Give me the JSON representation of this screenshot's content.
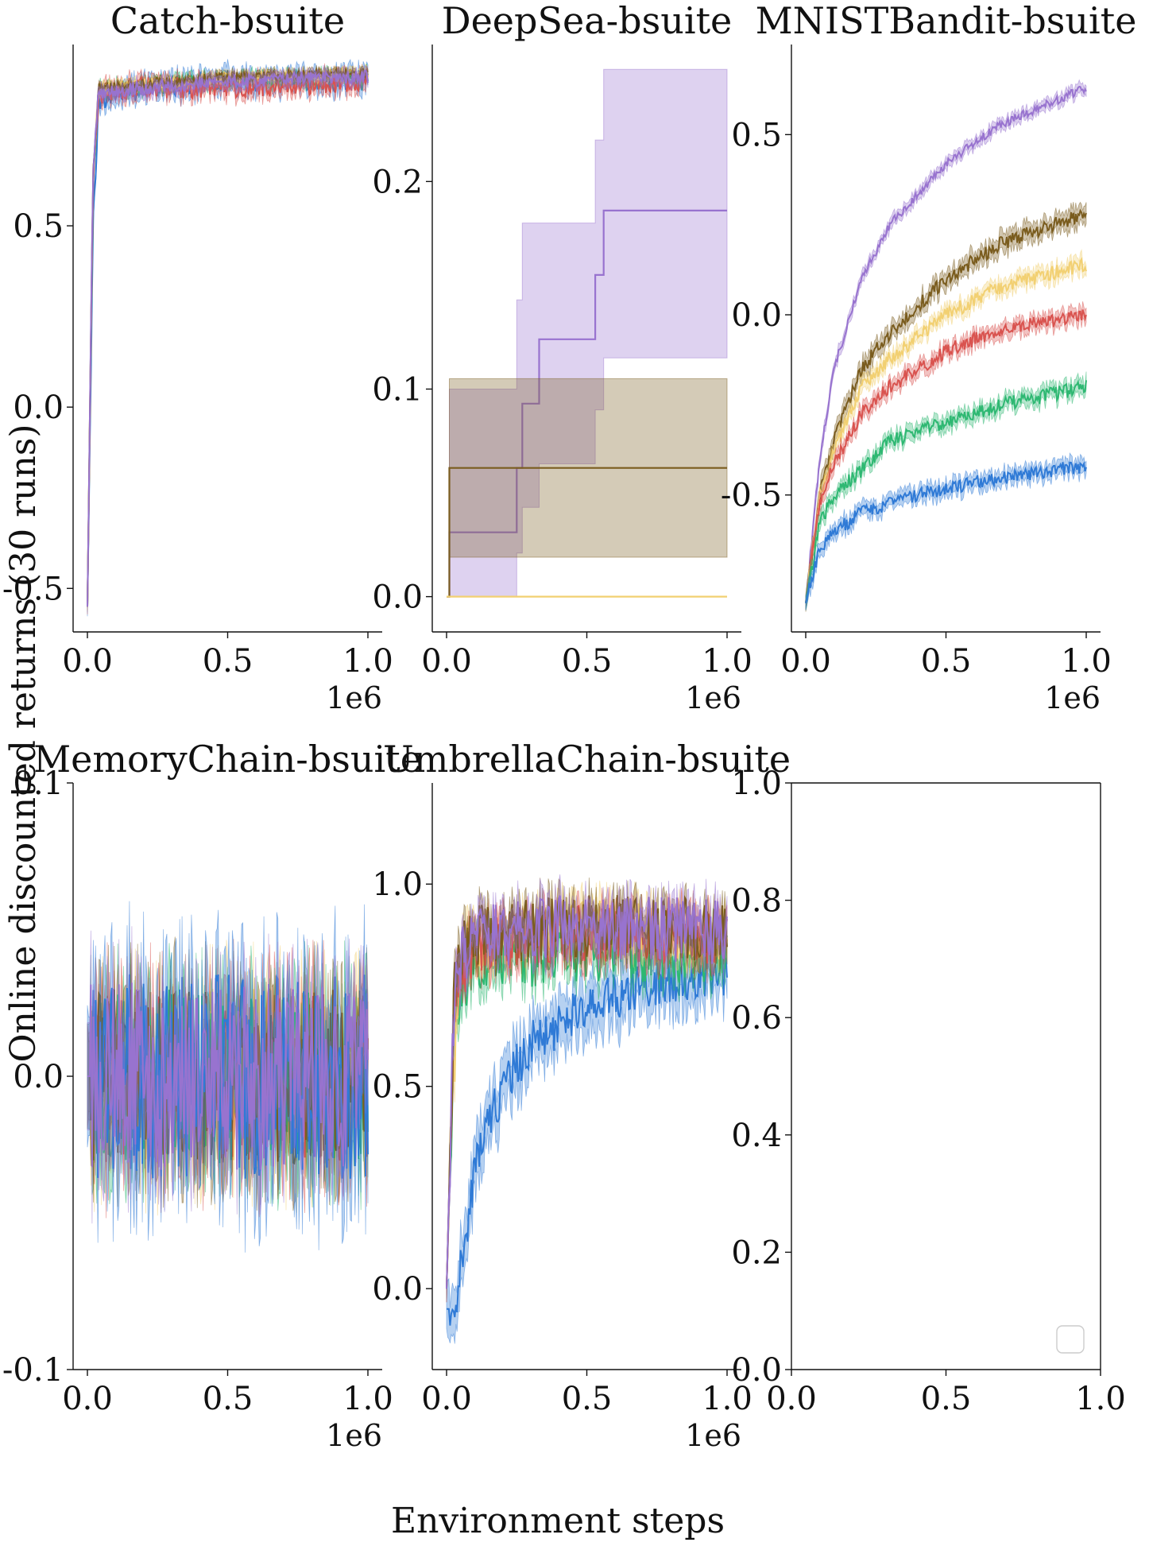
{
  "figure": {
    "xlabel": "Environment steps",
    "ylabel": "Online discounted returns (30 runs)"
  },
  "palette": {
    "blue": "#2f7ad6",
    "green": "#2eb872",
    "red": "#d9534f",
    "yellow": "#f2d072",
    "brown": "#7a5c1e",
    "purple": "#9873cf"
  },
  "chart_data": [
    {
      "type": "line",
      "title": "Catch-bsuite",
      "xlim": [
        0,
        1000000
      ],
      "ylim": [
        -0.62,
        1.0
      ],
      "x_offset_label": "1e6",
      "xticks": [
        {
          "value": 0,
          "label": "0.0"
        },
        {
          "value": 500000,
          "label": "0.5"
        },
        {
          "value": 1000000,
          "label": "1.0"
        }
      ],
      "yticks": [
        {
          "value": -0.5,
          "label": "-0.5"
        },
        {
          "value": 0.0,
          "label": "0.0"
        },
        {
          "value": 0.5,
          "label": "0.5"
        }
      ],
      "series": [
        {
          "color": "blue",
          "points": [
            [
              0,
              -0.55
            ],
            [
              20000,
              0.5
            ],
            [
              40000,
              0.84
            ],
            [
              100000,
              0.86
            ],
            [
              200000,
              0.88
            ],
            [
              500000,
              0.9
            ],
            [
              800000,
              0.9
            ],
            [
              1000000,
              0.9
            ]
          ],
          "noise": 0.03,
          "band": 0.025
        },
        {
          "color": "green",
          "points": [
            [
              0,
              -0.55
            ],
            [
              20000,
              0.6
            ],
            [
              40000,
              0.87
            ],
            [
              100000,
              0.88
            ],
            [
              500000,
              0.9
            ],
            [
              1000000,
              0.91
            ]
          ],
          "noise": 0.02,
          "band": 0.015
        },
        {
          "color": "red",
          "points": [
            [
              0,
              -0.55
            ],
            [
              20000,
              0.6
            ],
            [
              40000,
              0.86
            ],
            [
              100000,
              0.88
            ],
            [
              500000,
              0.88
            ],
            [
              1000000,
              0.9
            ]
          ],
          "noise": 0.03,
          "band": 0.02
        },
        {
          "color": "yellow",
          "points": [
            [
              0,
              -0.55
            ],
            [
              20000,
              0.65
            ],
            [
              40000,
              0.88
            ],
            [
              500000,
              0.91
            ],
            [
              1000000,
              0.92
            ]
          ],
          "noise": 0.015,
          "band": 0.01
        },
        {
          "color": "brown",
          "points": [
            [
              0,
              -0.55
            ],
            [
              20000,
              0.65
            ],
            [
              40000,
              0.88
            ],
            [
              500000,
              0.91
            ],
            [
              1000000,
              0.92
            ]
          ],
          "noise": 0.015,
          "band": 0.01
        },
        {
          "color": "purple",
          "points": [
            [
              0,
              -0.55
            ],
            [
              20000,
              0.65
            ],
            [
              40000,
              0.87
            ],
            [
              500000,
              0.9
            ],
            [
              1000000,
              0.91
            ]
          ],
          "noise": 0.02,
          "band": 0.015
        }
      ]
    },
    {
      "type": "line",
      "title": "DeepSea-bsuite",
      "xlim": [
        0,
        1000000
      ],
      "ylim": [
        -0.017,
        0.266
      ],
      "x_offset_label": "1e6",
      "xticks": [
        {
          "value": 0,
          "label": "0.0"
        },
        {
          "value": 500000,
          "label": "0.5"
        },
        {
          "value": 1000000,
          "label": "1.0"
        }
      ],
      "yticks": [
        {
          "value": 0.0,
          "label": "0.0"
        },
        {
          "value": 0.1,
          "label": "0.1"
        },
        {
          "value": 0.2,
          "label": "0.2"
        }
      ],
      "step_series": [
        {
          "color": "purple",
          "x": [
            0,
            10000,
            250000,
            270000,
            330000,
            530000,
            560000,
            1000000
          ],
          "y": [
            0.0,
            0.031,
            0.062,
            0.093,
            0.124,
            0.155,
            0.186,
            0.186
          ],
          "lower": [
            0.0,
            0.0,
            0.021,
            0.043,
            0.064,
            0.09,
            0.115,
            0.115
          ],
          "upper": [
            0.0,
            0.1,
            0.143,
            0.18,
            0.18,
            0.22,
            0.254,
            0.254
          ]
        },
        {
          "color": "brown",
          "x": [
            0,
            10000,
            1000000
          ],
          "y": [
            0.0,
            0.062,
            0.062
          ],
          "lower": [
            0.0,
            0.019,
            0.019
          ],
          "upper": [
            0.0,
            0.105,
            0.105
          ]
        },
        {
          "color": "yellow",
          "x": [
            0,
            1000000
          ],
          "y": [
            0.0,
            0.0
          ],
          "lower": [
            0.0,
            0.0
          ],
          "upper": [
            0.0,
            0.0
          ]
        }
      ]
    },
    {
      "type": "line",
      "title": "MNISTBandit-bsuite",
      "xlim": [
        0,
        1000000
      ],
      "ylim": [
        -0.88,
        0.75
      ],
      "x_offset_label": "1e6",
      "xticks": [
        {
          "value": 0,
          "label": "0.0"
        },
        {
          "value": 500000,
          "label": "0.5"
        },
        {
          "value": 1000000,
          "label": "1.0"
        }
      ],
      "yticks": [
        {
          "value": -0.5,
          "label": "-0.5"
        },
        {
          "value": 0.0,
          "label": "0.0"
        },
        {
          "value": 0.5,
          "label": "0.5"
        }
      ],
      "series": [
        {
          "color": "purple",
          "points": [
            [
              0,
              -0.8
            ],
            [
              50000,
              -0.4
            ],
            [
              100000,
              -0.15
            ],
            [
              200000,
              0.1
            ],
            [
              300000,
              0.25
            ],
            [
              500000,
              0.42
            ],
            [
              700000,
              0.53
            ],
            [
              1000000,
              0.63
            ]
          ],
          "noise": 0.012,
          "band": 0.015
        },
        {
          "color": "brown",
          "points": [
            [
              0,
              -0.8
            ],
            [
              50000,
              -0.5
            ],
            [
              100000,
              -0.35
            ],
            [
              200000,
              -0.15
            ],
            [
              300000,
              -0.05
            ],
            [
              500000,
              0.1
            ],
            [
              700000,
              0.2
            ],
            [
              1000000,
              0.28
            ]
          ],
          "noise": 0.02,
          "band": 0.025
        },
        {
          "color": "yellow",
          "points": [
            [
              0,
              -0.8
            ],
            [
              50000,
              -0.5
            ],
            [
              100000,
              -0.38
            ],
            [
              200000,
              -0.2
            ],
            [
              300000,
              -0.12
            ],
            [
              500000,
              0.0
            ],
            [
              700000,
              0.08
            ],
            [
              1000000,
              0.14
            ]
          ],
          "noise": 0.02,
          "band": 0.02
        },
        {
          "color": "red",
          "points": [
            [
              0,
              -0.8
            ],
            [
              50000,
              -0.52
            ],
            [
              100000,
              -0.42
            ],
            [
              200000,
              -0.27
            ],
            [
              300000,
              -0.2
            ],
            [
              500000,
              -0.1
            ],
            [
              700000,
              -0.04
            ],
            [
              1000000,
              0.0
            ]
          ],
          "noise": 0.02,
          "band": 0.02
        },
        {
          "color": "green",
          "points": [
            [
              0,
              -0.8
            ],
            [
              50000,
              -0.58
            ],
            [
              100000,
              -0.5
            ],
            [
              200000,
              -0.43
            ],
            [
              300000,
              -0.35
            ],
            [
              500000,
              -0.3
            ],
            [
              700000,
              -0.25
            ],
            [
              1000000,
              -0.2
            ]
          ],
          "noise": 0.02,
          "band": 0.02
        },
        {
          "color": "blue",
          "points": [
            [
              0,
              -0.8
            ],
            [
              50000,
              -0.65
            ],
            [
              100000,
              -0.6
            ],
            [
              200000,
              -0.55
            ],
            [
              300000,
              -0.52
            ],
            [
              500000,
              -0.48
            ],
            [
              700000,
              -0.45
            ],
            [
              1000000,
              -0.42
            ]
          ],
          "noise": 0.02,
          "band": 0.02
        }
      ]
    },
    {
      "type": "line",
      "title": "MemoryChain-bsuite",
      "xlim": [
        0,
        1000000
      ],
      "ylim": [
        -0.1,
        0.1
      ],
      "x_offset_label": "1e6",
      "xticks": [
        {
          "value": 0,
          "label": "0.0"
        },
        {
          "value": 500000,
          "label": "0.5"
        },
        {
          "value": 1000000,
          "label": "1.0"
        }
      ],
      "yticks": [
        {
          "value": -0.1,
          "label": "-0.1"
        },
        {
          "value": 0.0,
          "label": "0.0"
        },
        {
          "value": 0.1,
          "label": "0.1"
        }
      ],
      "series": [
        {
          "color": "yellow",
          "points": [
            [
              0,
              0.0
            ],
            [
              1000000,
              0.0
            ]
          ],
          "noise": 0.03,
          "band": 0.015
        },
        {
          "color": "red",
          "points": [
            [
              0,
              0.0
            ],
            [
              1000000,
              0.0
            ]
          ],
          "noise": 0.03,
          "band": 0.015
        },
        {
          "color": "green",
          "points": [
            [
              0,
              0.0
            ],
            [
              1000000,
              0.0
            ]
          ],
          "noise": 0.03,
          "band": 0.015
        },
        {
          "color": "brown",
          "points": [
            [
              0,
              0.0
            ],
            [
              1000000,
              0.0
            ]
          ],
          "noise": 0.03,
          "band": 0.015
        },
        {
          "color": "blue",
          "points": [
            [
              0,
              0.0
            ],
            [
              1000000,
              0.0
            ]
          ],
          "noise": 0.035,
          "band": 0.02
        },
        {
          "color": "purple",
          "points": [
            [
              0,
              0.0
            ],
            [
              1000000,
              0.0
            ]
          ],
          "noise": 0.032,
          "band": 0.015
        }
      ]
    },
    {
      "type": "line",
      "title": "UmbrellaChain-bsuite",
      "xlim": [
        0,
        1000000
      ],
      "ylim": [
        -0.2,
        1.25
      ],
      "x_offset_label": "1e6",
      "xticks": [
        {
          "value": 0,
          "label": "0.0"
        },
        {
          "value": 500000,
          "label": "0.5"
        },
        {
          "value": 1000000,
          "label": "1.0"
        }
      ],
      "yticks": [
        {
          "value": 0.0,
          "label": "0.0"
        },
        {
          "value": 0.5,
          "label": "0.5"
        },
        {
          "value": 1.0,
          "label": "1.0"
        }
      ],
      "series": [
        {
          "color": "blue",
          "points": [
            [
              0,
              -0.05
            ],
            [
              30000,
              -0.05
            ],
            [
              100000,
              0.3
            ],
            [
              200000,
              0.5
            ],
            [
              300000,
              0.6
            ],
            [
              500000,
              0.7
            ],
            [
              700000,
              0.75
            ],
            [
              1000000,
              0.78
            ]
          ],
          "noise": 0.06,
          "band": 0.06
        },
        {
          "color": "green",
          "points": [
            [
              0,
              0.0
            ],
            [
              30000,
              0.7
            ],
            [
              100000,
              0.8
            ],
            [
              500000,
              0.83
            ],
            [
              1000000,
              0.82
            ]
          ],
          "noise": 0.07,
          "band": 0.04
        },
        {
          "color": "yellow",
          "points": [
            [
              0,
              0.0
            ],
            [
              20000,
              0.5
            ],
            [
              60000,
              0.85
            ],
            [
              500000,
              0.9
            ],
            [
              1000000,
              0.88
            ]
          ],
          "noise": 0.07,
          "band": 0.04
        },
        {
          "color": "red",
          "points": [
            [
              0,
              0.0
            ],
            [
              30000,
              0.75
            ],
            [
              100000,
              0.85
            ],
            [
              500000,
              0.88
            ],
            [
              1000000,
              0.87
            ]
          ],
          "noise": 0.07,
          "band": 0.04
        },
        {
          "color": "brown",
          "points": [
            [
              0,
              0.0
            ],
            [
              30000,
              0.8
            ],
            [
              100000,
              0.88
            ],
            [
              500000,
              0.9
            ],
            [
              1000000,
              0.88
            ]
          ],
          "noise": 0.08,
          "band": 0.04
        },
        {
          "color": "purple",
          "points": [
            [
              0,
              0.0
            ],
            [
              30000,
              0.8
            ],
            [
              100000,
              0.87
            ],
            [
              500000,
              0.9
            ],
            [
              1000000,
              0.88
            ]
          ],
          "noise": 0.08,
          "band": 0.04
        }
      ]
    },
    {
      "type": "line",
      "title": "",
      "xlim": [
        0,
        1
      ],
      "ylim": [
        0,
        1
      ],
      "xticks": [
        {
          "value": 0,
          "label": "0.0"
        },
        {
          "value": 0.5,
          "label": "0.5"
        },
        {
          "value": 1,
          "label": "1.0"
        }
      ],
      "yticks": [
        {
          "value": 0,
          "label": "0.0"
        },
        {
          "value": 0.2,
          "label": "0.2"
        },
        {
          "value": 0.4,
          "label": "0.4"
        },
        {
          "value": 0.6,
          "label": "0.6"
        },
        {
          "value": 0.8,
          "label": "0.8"
        },
        {
          "value": 1.0,
          "label": "1.0"
        }
      ],
      "legend": "lower-right",
      "series": []
    }
  ]
}
